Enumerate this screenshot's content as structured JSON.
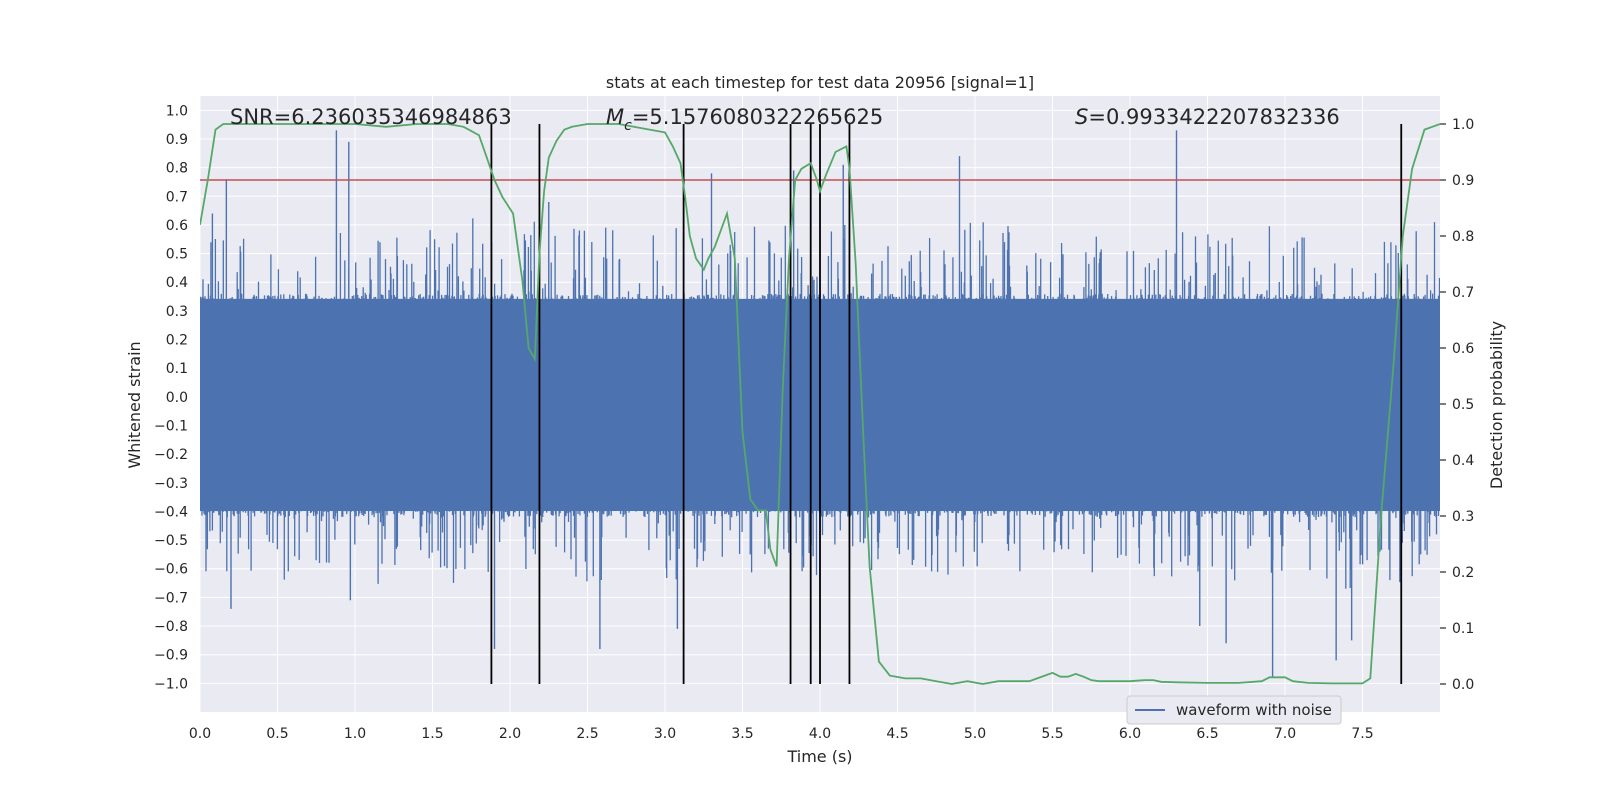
{
  "colors": {
    "background": "#ffffff",
    "plot_area": "#eaeaf2",
    "grid": "#ffffff",
    "waveform": "#4c72b0",
    "probability": "#55a868",
    "threshold": "#c44e52",
    "event_lines": "#000000",
    "text": "#262626"
  },
  "chart_data": {
    "type": "line",
    "title": "stats at each timestep for test data 20956 [signal=1]",
    "xlabel": "Time (s)",
    "ylabel_left": "Whitened strain",
    "ylabel_right": "Detection probability",
    "xlim": [
      0.0,
      8.0
    ],
    "ylim_left": [
      -1.1,
      1.05
    ],
    "ylim_right": [
      -0.05,
      1.05
    ],
    "x_ticks": [
      "0.0",
      "0.5",
      "1.0",
      "1.5",
      "2.0",
      "2.5",
      "3.0",
      "3.5",
      "4.0",
      "4.5",
      "5.0",
      "5.5",
      "6.0",
      "6.5",
      "7.0",
      "7.5"
    ],
    "y_ticks_left": [
      "1.0",
      "0.9",
      "0.8",
      "0.7",
      "0.6",
      "0.5",
      "0.4",
      "0.3",
      "0.2",
      "0.1",
      "0.0",
      "−0.1",
      "−0.2",
      "−0.3",
      "−0.4",
      "−0.5",
      "−0.6",
      "−0.7",
      "−0.8",
      "−0.9",
      "−1.0"
    ],
    "y_ticks_right": [
      "1.0",
      "0.9",
      "0.8",
      "0.7",
      "0.6",
      "0.5",
      "0.4",
      "0.3",
      "0.2",
      "0.1",
      "0.0"
    ],
    "grid": true,
    "legend": {
      "location": "lower center",
      "entries": [
        "waveform with noise"
      ]
    },
    "annotations": {
      "snr": "SNR=6.236035346984863",
      "chirp_mass_symbol": "M",
      "chirp_mass_subscript": "c",
      "chirp_mass_value": "=5.1576080322265625",
      "spin_symbol": "S",
      "spin_value": "=0.9933422207832336"
    },
    "threshold_probability": 0.9,
    "event_lines_x": [
      1.88,
      2.19,
      3.12,
      3.81,
      3.94,
      4.0,
      4.19,
      7.75
    ],
    "waveform": {
      "name": "waveform with noise",
      "body_range": [
        -0.42,
        0.36
      ],
      "spikes": [
        {
          "x": 0.08,
          "y": 0.64
        },
        {
          "x": 0.17,
          "y": 0.76
        },
        {
          "x": 0.2,
          "y": -0.74
        },
        {
          "x": 0.88,
          "y": 0.93
        },
        {
          "x": 0.96,
          "y": 0.89
        },
        {
          "x": 0.97,
          "y": -0.71
        },
        {
          "x": 1.9,
          "y": -0.88
        },
        {
          "x": 2.25,
          "y": 0.68
        },
        {
          "x": 2.58,
          "y": -0.88
        },
        {
          "x": 3.08,
          "y": -0.81
        },
        {
          "x": 3.3,
          "y": 0.78
        },
        {
          "x": 3.55,
          "y": -0.55
        },
        {
          "x": 3.83,
          "y": 0.79
        },
        {
          "x": 4.15,
          "y": 0.81
        },
        {
          "x": 4.9,
          "y": 0.84
        },
        {
          "x": 6.3,
          "y": 0.93
        },
        {
          "x": 6.45,
          "y": -0.8
        },
        {
          "x": 6.62,
          "y": -0.86
        },
        {
          "x": 6.92,
          "y": -0.98
        },
        {
          "x": 7.33,
          "y": -0.92
        },
        {
          "x": 7.43,
          "y": -0.85
        }
      ]
    },
    "detection_probability": {
      "x": [
        0.0,
        0.05,
        0.1,
        0.15,
        0.2,
        0.4,
        0.6,
        0.8,
        1.0,
        1.2,
        1.4,
        1.6,
        1.7,
        1.8,
        1.85,
        1.9,
        1.95,
        2.02,
        2.08,
        2.12,
        2.16,
        2.19,
        2.22,
        2.25,
        2.3,
        2.35,
        2.4,
        2.5,
        2.6,
        2.7,
        2.8,
        2.9,
        3.0,
        3.05,
        3.1,
        3.13,
        3.16,
        3.2,
        3.25,
        3.28,
        3.32,
        3.36,
        3.4,
        3.45,
        3.5,
        3.55,
        3.6,
        3.65,
        3.68,
        3.72,
        3.76,
        3.8,
        3.84,
        3.88,
        3.94,
        3.98,
        4.0,
        4.04,
        4.1,
        4.17,
        4.19,
        4.23,
        4.28,
        4.32,
        4.38,
        4.45,
        4.55,
        4.65,
        4.75,
        4.85,
        4.95,
        5.05,
        5.15,
        5.25,
        5.35,
        5.45,
        5.5,
        5.55,
        5.6,
        5.65,
        5.7,
        5.75,
        5.8,
        5.9,
        6.0,
        6.1,
        6.15,
        6.2,
        6.3,
        6.5,
        6.7,
        6.85,
        6.9,
        6.95,
        7.0,
        7.05,
        7.15,
        7.3,
        7.45,
        7.5,
        7.55,
        7.62,
        7.7,
        7.76,
        7.82,
        7.9,
        7.95,
        8.0
      ],
      "y": [
        0.82,
        0.9,
        0.99,
        1.0,
        1.0,
        1.0,
        1.0,
        1.0,
        1.0,
        0.995,
        1.0,
        1.0,
        0.995,
        0.98,
        0.94,
        0.9,
        0.87,
        0.84,
        0.72,
        0.6,
        0.58,
        0.77,
        0.88,
        0.94,
        0.97,
        0.99,
        0.995,
        1.0,
        1.0,
        1.0,
        0.995,
        0.99,
        0.985,
        0.96,
        0.93,
        0.87,
        0.8,
        0.76,
        0.74,
        0.76,
        0.78,
        0.81,
        0.84,
        0.76,
        0.45,
        0.33,
        0.31,
        0.31,
        0.24,
        0.21,
        0.53,
        0.76,
        0.9,
        0.92,
        0.93,
        0.9,
        0.88,
        0.91,
        0.95,
        0.96,
        0.92,
        0.75,
        0.44,
        0.21,
        0.04,
        0.015,
        0.01,
        0.01,
        0.005,
        0.0,
        0.005,
        0.0,
        0.005,
        0.005,
        0.005,
        0.015,
        0.02,
        0.013,
        0.013,
        0.018,
        0.013,
        0.007,
        0.005,
        0.005,
        0.005,
        0.007,
        0.007,
        0.004,
        0.003,
        0.002,
        0.002,
        0.005,
        0.012,
        0.012,
        0.012,
        0.005,
        0.002,
        0.001,
        0.001,
        0.001,
        0.01,
        0.3,
        0.57,
        0.8,
        0.92,
        0.99,
        0.995,
        1.0
      ]
    }
  }
}
